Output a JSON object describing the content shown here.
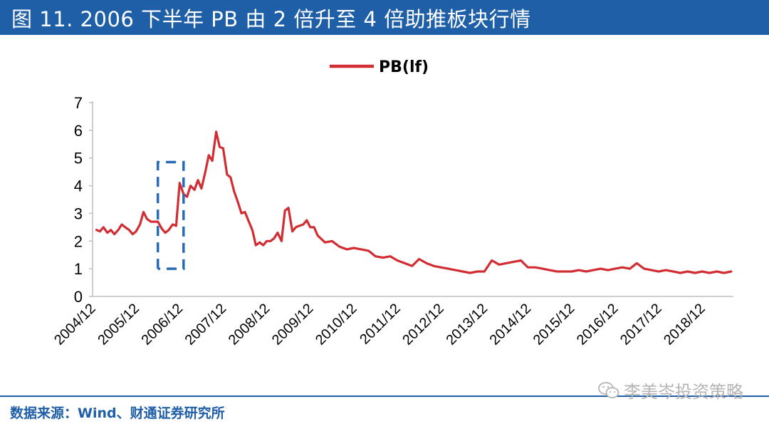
{
  "header": {
    "title": "图 11. 2006 下半年 PB 由 2 倍升至 4 倍助推板块行情"
  },
  "footer": {
    "source": "数据来源：Wind、财通证券研究所",
    "watermark": "李美岑投资策略",
    "watermark_icon": "wechat-icon"
  },
  "colors": {
    "title_bg": "#1f5fa8",
    "series": "#d22d33",
    "highlight_box": "#2a6bb8",
    "axis": "#bfbfbf"
  },
  "chart_data": {
    "type": "line",
    "title": "",
    "xlabel": "",
    "ylabel": "",
    "ylim": [
      0,
      7
    ],
    "yticks": [
      "0",
      "1",
      "2",
      "3",
      "4",
      "5",
      "6",
      "7"
    ],
    "xticks": [
      "2004/12",
      "2005/12",
      "2006/12",
      "2007/12",
      "2008/12",
      "2009/12",
      "2010/12",
      "2011/12",
      "2012/12",
      "2013/12",
      "2014/12",
      "2015/12",
      "2016/12",
      "2017/12",
      "2018/12"
    ],
    "legend_position": "top-center",
    "annotation": "dashed box highlighting 2006/06 – 2006/11",
    "highlight_range": [
      2006.33,
      2006.92
    ],
    "series": [
      {
        "name": "PB(lf)",
        "x": [
          2004.92,
          2005.0,
          2005.08,
          2005.17,
          2005.25,
          2005.33,
          2005.42,
          2005.5,
          2005.58,
          2005.67,
          2005.75,
          2005.83,
          2005.92,
          2006.0,
          2006.08,
          2006.17,
          2006.25,
          2006.33,
          2006.42,
          2006.5,
          2006.58,
          2006.67,
          2006.75,
          2006.83,
          2006.92,
          2007.0,
          2007.08,
          2007.17,
          2007.25,
          2007.33,
          2007.42,
          2007.5,
          2007.58,
          2007.67,
          2007.75,
          2007.83,
          2007.92,
          2008.0,
          2008.08,
          2008.17,
          2008.25,
          2008.33,
          2008.42,
          2008.5,
          2008.58,
          2008.67,
          2008.75,
          2008.83,
          2008.92,
          2009.0,
          2009.08,
          2009.17,
          2009.25,
          2009.33,
          2009.42,
          2009.5,
          2009.58,
          2009.67,
          2009.75,
          2009.83,
          2009.92,
          2010.0,
          2010.17,
          2010.33,
          2010.5,
          2010.67,
          2010.83,
          2011.0,
          2011.17,
          2011.33,
          2011.5,
          2011.67,
          2011.83,
          2012.0,
          2012.17,
          2012.33,
          2012.5,
          2012.67,
          2012.83,
          2013.0,
          2013.17,
          2013.33,
          2013.5,
          2013.67,
          2013.83,
          2014.0,
          2014.17,
          2014.33,
          2014.5,
          2014.67,
          2014.83,
          2015.0,
          2015.17,
          2015.33,
          2015.5,
          2015.67,
          2015.83,
          2016.0,
          2016.17,
          2016.33,
          2016.5,
          2016.67,
          2016.83,
          2017.0,
          2017.17,
          2017.33,
          2017.5,
          2017.67,
          2017.83,
          2018.0,
          2018.17,
          2018.33,
          2018.5,
          2018.67,
          2018.83,
          2019.0,
          2019.17,
          2019.33,
          2019.5
        ],
        "values": [
          2.4,
          2.35,
          2.5,
          2.3,
          2.4,
          2.25,
          2.4,
          2.6,
          2.5,
          2.4,
          2.25,
          2.35,
          2.6,
          3.05,
          2.8,
          2.7,
          2.7,
          2.7,
          2.45,
          2.3,
          2.4,
          2.6,
          2.55,
          4.1,
          3.7,
          3.6,
          4.0,
          3.85,
          4.2,
          3.9,
          4.5,
          5.1,
          4.9,
          5.95,
          5.4,
          5.35,
          4.4,
          4.3,
          3.8,
          3.4,
          3.0,
          3.05,
          2.7,
          2.4,
          1.85,
          1.95,
          1.85,
          2.0,
          2.0,
          2.1,
          2.3,
          2.0,
          3.1,
          3.2,
          2.35,
          2.5,
          2.55,
          2.6,
          2.75,
          2.5,
          2.5,
          2.2,
          1.95,
          2.0,
          1.8,
          1.7,
          1.75,
          1.7,
          1.65,
          1.45,
          1.4,
          1.45,
          1.3,
          1.2,
          1.1,
          1.35,
          1.2,
          1.1,
          1.05,
          1.0,
          0.95,
          0.9,
          0.85,
          0.9,
          0.9,
          1.3,
          1.15,
          1.2,
          1.25,
          1.3,
          1.05,
          1.05,
          1.0,
          0.95,
          0.9,
          0.9,
          0.9,
          0.95,
          0.9,
          0.95,
          1.0,
          0.95,
          1.0,
          1.05,
          1.0,
          1.2,
          1.0,
          0.95,
          0.9,
          0.95,
          0.9,
          0.85,
          0.9,
          0.85,
          0.9,
          0.85,
          0.9,
          0.85,
          0.9
        ]
      }
    ]
  }
}
